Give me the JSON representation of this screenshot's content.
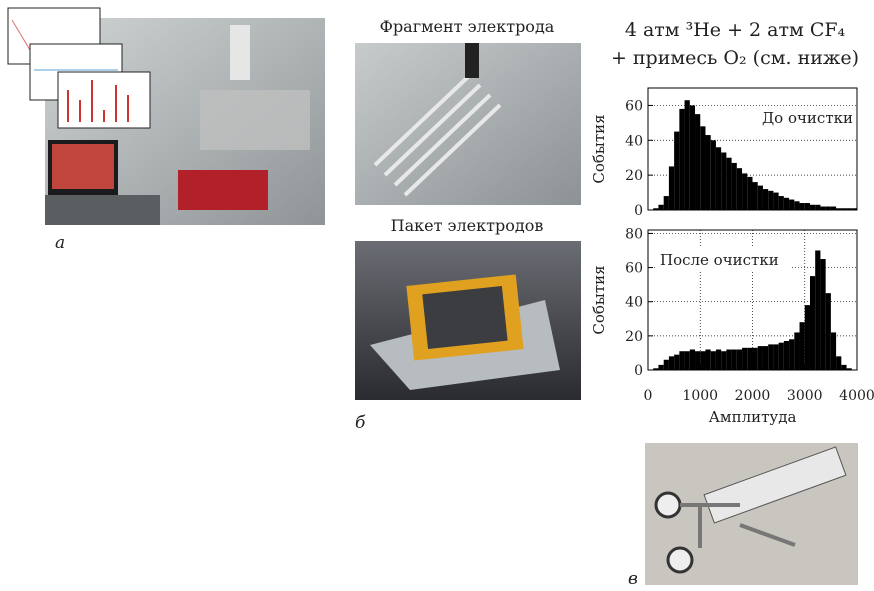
{
  "panel_labels": [
    "а",
    "б",
    "в"
  ],
  "photo_titles": [
    "Фрагмент электрода",
    "Пакет электродов"
  ],
  "chart_header": [
    "4 атм ³He + 2 атм CF₄",
    "+ примесь O₂ (см. ниже)"
  ],
  "chart_data": [
    {
      "type": "histogram",
      "annotation": "До очистки",
      "ylabel": "События",
      "color": "#000000",
      "grid": true,
      "bins": [
        0,
        100,
        200,
        300,
        400,
        500,
        600,
        700,
        800,
        900,
        1000,
        1100,
        1200,
        1300,
        1400,
        1500,
        1600,
        1700,
        1800,
        1900,
        2000,
        2100,
        2200,
        2300,
        2400,
        2500,
        2600,
        2700,
        2800,
        2900,
        3000,
        3100,
        3200,
        3300,
        3400,
        3500,
        3600,
        3700,
        3800,
        3900,
        4000
      ],
      "values": [
        0,
        1,
        3,
        8,
        25,
        45,
        58,
        63,
        60,
        55,
        48,
        43,
        40,
        36,
        33,
        30,
        27,
        24,
        21,
        19,
        16,
        14,
        12,
        11,
        10,
        8,
        7,
        6,
        5,
        4,
        4,
        3,
        3,
        2,
        2,
        2,
        1,
        1,
        1,
        1
      ],
      "xlim": [
        0,
        4000
      ],
      "ylim": [
        0,
        70
      ],
      "yticks": [
        0,
        20,
        40,
        60
      ]
    },
    {
      "type": "histogram",
      "annotation": "После очистки",
      "ylabel": "События",
      "xlabel": "Амплитуда",
      "color": "#000000",
      "grid": true,
      "bins": [
        0,
        100,
        200,
        300,
        400,
        500,
        600,
        700,
        800,
        900,
        1000,
        1100,
        1200,
        1300,
        1400,
        1500,
        1600,
        1700,
        1800,
        1900,
        2000,
        2100,
        2200,
        2300,
        2400,
        2500,
        2600,
        2700,
        2800,
        2900,
        3000,
        3100,
        3200,
        3300,
        3400,
        3500,
        3600,
        3700,
        3800,
        3900,
        4000
      ],
      "values": [
        0,
        1,
        3,
        6,
        8,
        9,
        11,
        11,
        12,
        11,
        11,
        12,
        11,
        12,
        11,
        12,
        12,
        12,
        13,
        13,
        13,
        14,
        14,
        15,
        15,
        16,
        17,
        18,
        22,
        28,
        38,
        55,
        70,
        65,
        45,
        22,
        8,
        3,
        1,
        0
      ],
      "xlim": [
        0,
        4000
      ],
      "ylim": [
        0,
        82
      ],
      "xticks": [
        0,
        1000,
        2000,
        3000,
        4000
      ],
      "yticks": [
        0,
        20,
        40,
        60,
        80
      ]
    }
  ]
}
